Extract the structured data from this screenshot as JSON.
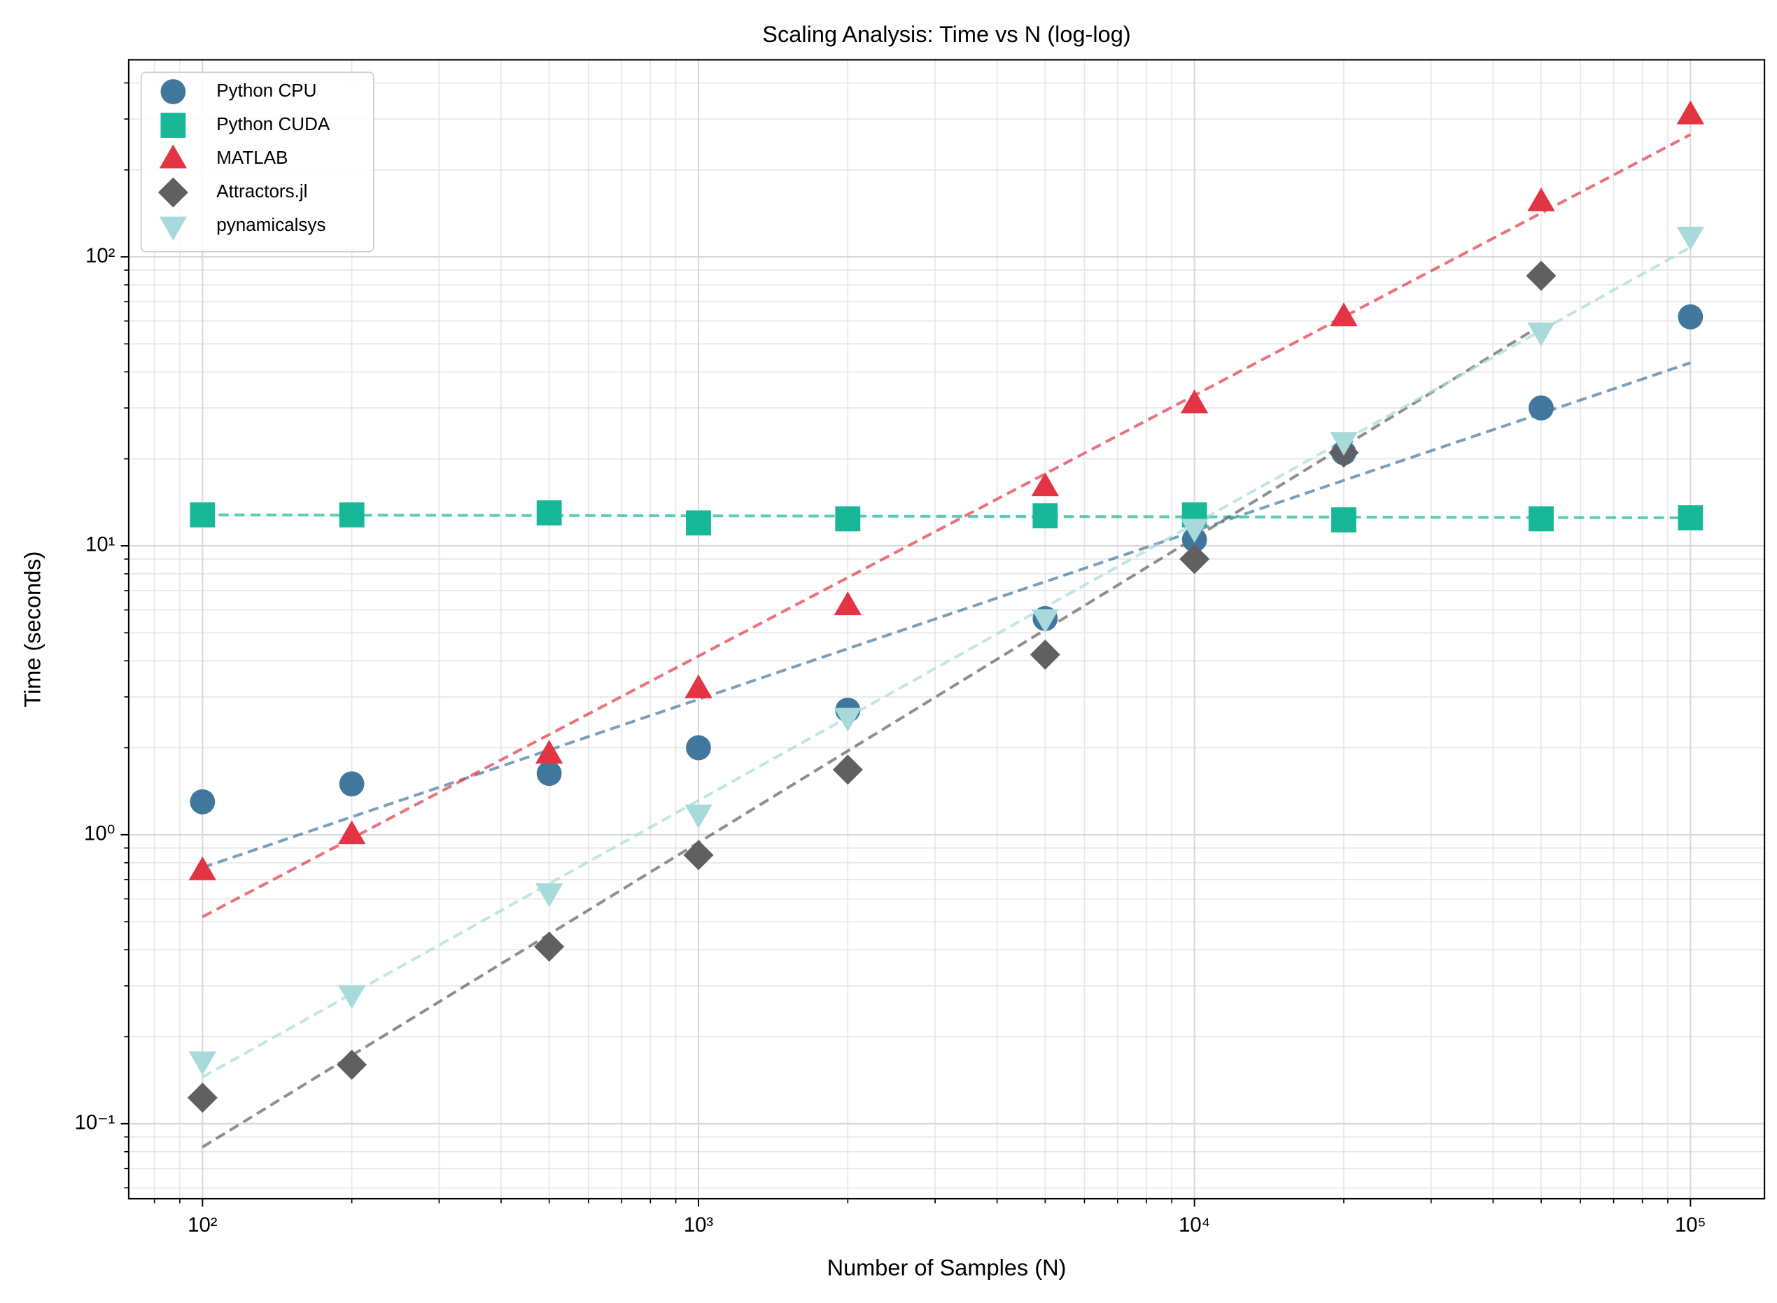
{
  "chart_data": {
    "type": "scatter",
    "title": "Scaling Analysis: Time vs N (log-log)",
    "xlabel": "Number of Samples (N)",
    "ylabel": "Time (seconds)",
    "xscale": "log",
    "yscale": "log",
    "grid": true,
    "legend": "upper left",
    "x": [
      100,
      200,
      500,
      1000,
      2000,
      5000,
      10000,
      20000,
      50000,
      100000
    ],
    "xlim": [
      71,
      141000
    ],
    "ylim": [
      0.055,
      481
    ],
    "xticks": [
      {
        "value": 100,
        "label": "10²"
      },
      {
        "value": 1000,
        "label": "10³"
      },
      {
        "value": 10000,
        "label": "10⁴"
      },
      {
        "value": 100000,
        "label": "10⁵"
      }
    ],
    "yticks": [
      {
        "value": 0.1,
        "label": "10⁻¹"
      },
      {
        "value": 1,
        "label": "10⁰"
      },
      {
        "value": 10,
        "label": "10¹"
      },
      {
        "value": 100,
        "label": "10²"
      }
    ],
    "xminorticks": [
      80,
      90,
      200,
      300,
      400,
      500,
      600,
      700,
      800,
      900,
      2000,
      3000,
      4000,
      5000,
      6000,
      7000,
      8000,
      9000,
      20000,
      30000,
      40000,
      50000,
      60000,
      70000,
      80000,
      90000
    ],
    "yminorticks": [
      0.06,
      0.07,
      0.08,
      0.09,
      0.2,
      0.3,
      0.4,
      0.5,
      0.6,
      0.7,
      0.8,
      0.9,
      2,
      3,
      4,
      5,
      6,
      7,
      8,
      9,
      20,
      30,
      40,
      50,
      60,
      70,
      80,
      90,
      200,
      300,
      400
    ],
    "series": [
      {
        "name": "Python CPU",
        "color": "#41779c",
        "marker": "circle",
        "values": [
          1.3,
          1.5,
          1.63,
          2.0,
          2.7,
          5.6,
          10.5,
          21,
          30,
          62
        ],
        "fit": {
          "x": [
            100,
            100000
          ],
          "values": [
            0.77,
            43
          ]
        }
      },
      {
        "name": "Python CUDA",
        "color": "#18b797",
        "marker": "square",
        "values": [
          12.8,
          12.8,
          13,
          12,
          12.4,
          12.7,
          12.8,
          12.3,
          12.4,
          12.5
        ],
        "fit": {
          "x": [
            100,
            100000
          ],
          "values": [
            12.8,
            12.5
          ]
        }
      },
      {
        "name": "MATLAB",
        "color": "#e33444",
        "marker": "triangle-up",
        "values": [
          0.75,
          1.0,
          1.9,
          3.2,
          6.2,
          16,
          31,
          62,
          155,
          310
        ],
        "fit": {
          "x": [
            100,
            100000
          ],
          "values": [
            0.52,
            265
          ]
        }
      },
      {
        "name": "Attractors.jl",
        "color": "#606060",
        "marker": "diamond",
        "values": [
          0.123,
          0.16,
          0.41,
          0.85,
          1.68,
          4.2,
          9.0,
          21,
          86,
          null
        ],
        "fit": {
          "x": [
            100,
            50000
          ],
          "values": [
            0.083,
            58
          ]
        }
      },
      {
        "name": "pynamicalsys",
        "color": "#a8dadc",
        "marker": "triangle-down",
        "values": [
          0.165,
          0.28,
          0.63,
          1.18,
          2.55,
          5.6,
          11.5,
          23,
          55,
          118
        ],
        "fit": {
          "x": [
            100,
            100000
          ],
          "values": [
            0.145,
            108
          ]
        }
      }
    ]
  }
}
